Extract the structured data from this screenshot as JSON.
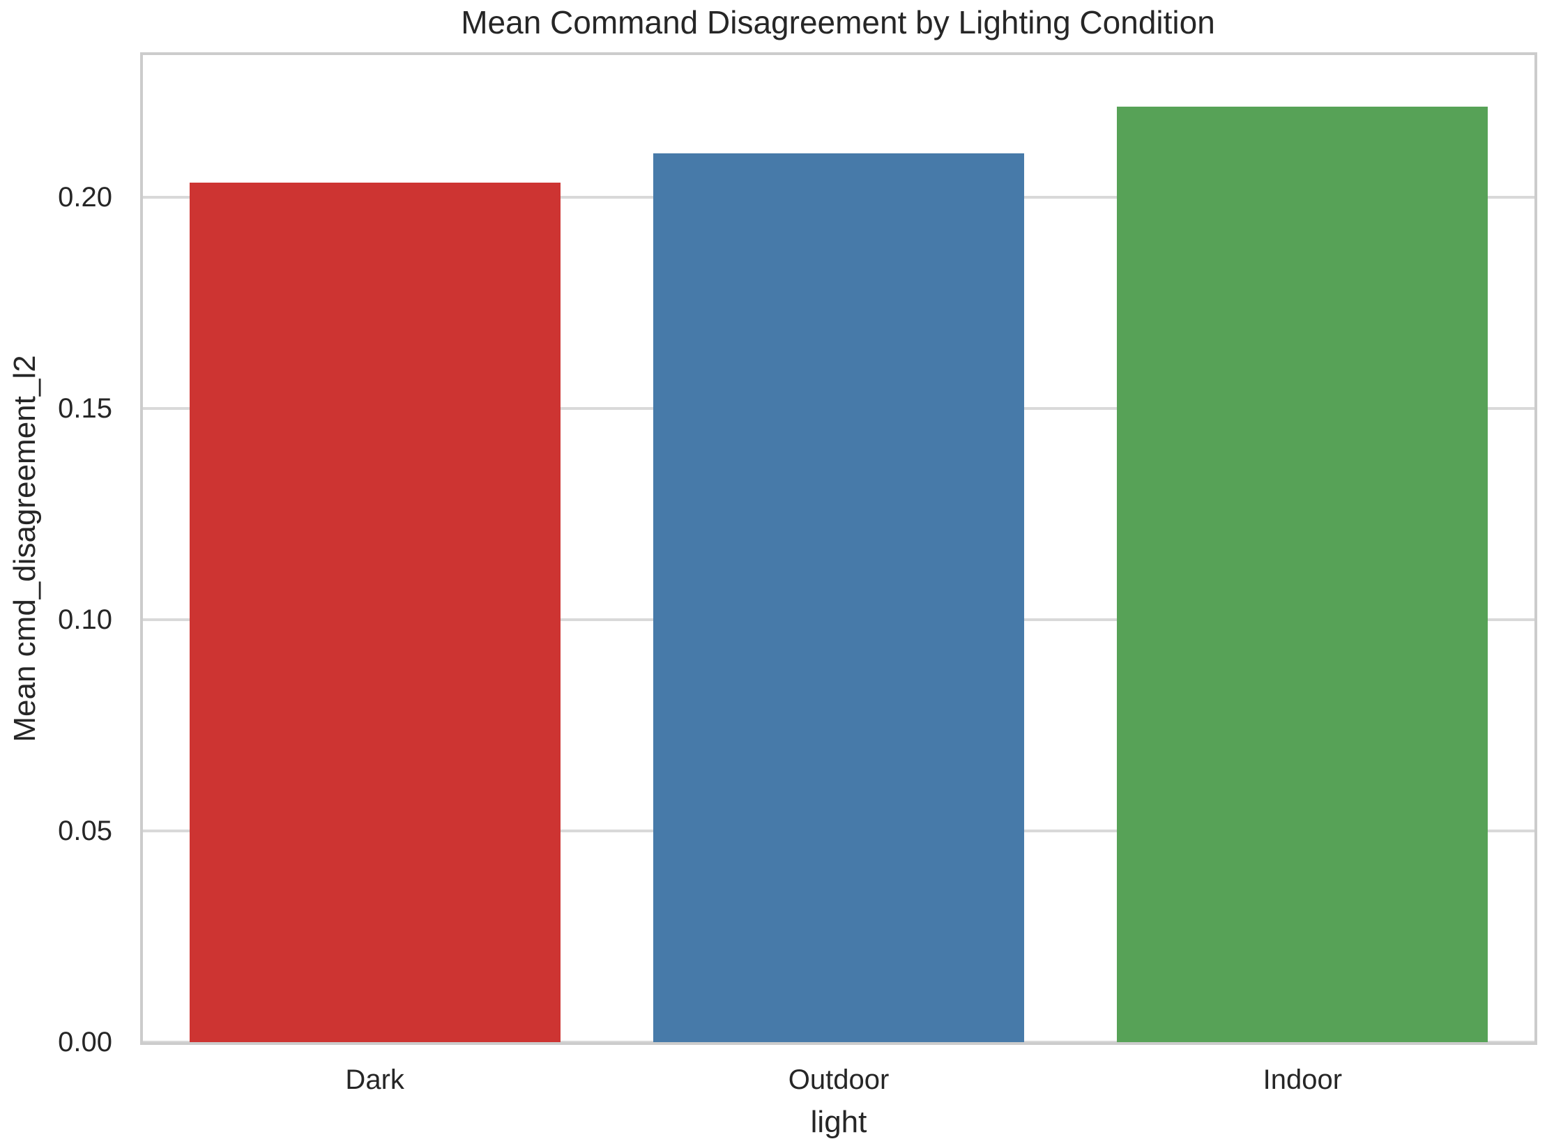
{
  "chart_data": {
    "type": "bar",
    "title": "Mean Command Disagreement by Lighting Condition",
    "xlabel": "light",
    "ylabel": "Mean cmd_disagreement_l2",
    "categories": [
      "Dark",
      "Outdoor",
      "Indoor"
    ],
    "values": [
      0.2035,
      0.2105,
      0.2215
    ],
    "colors": [
      "#cd3432",
      "#477aa9",
      "#57a257"
    ],
    "ylim": [
      0,
      0.2337
    ],
    "yticks": [
      0,
      0.05,
      0.1,
      0.15,
      0.2
    ],
    "ytick_labels": [
      "0.00",
      "0.05",
      "0.10",
      "0.15",
      "0.20"
    ],
    "bar_width_fraction": 0.8,
    "grid": "horizontal-gridlines",
    "legend": "none"
  },
  "style": {
    "grid_color": "#d9d9d9",
    "spine_color": "#cccccc",
    "text_color": "#262626",
    "background_color": "#ffffff"
  }
}
